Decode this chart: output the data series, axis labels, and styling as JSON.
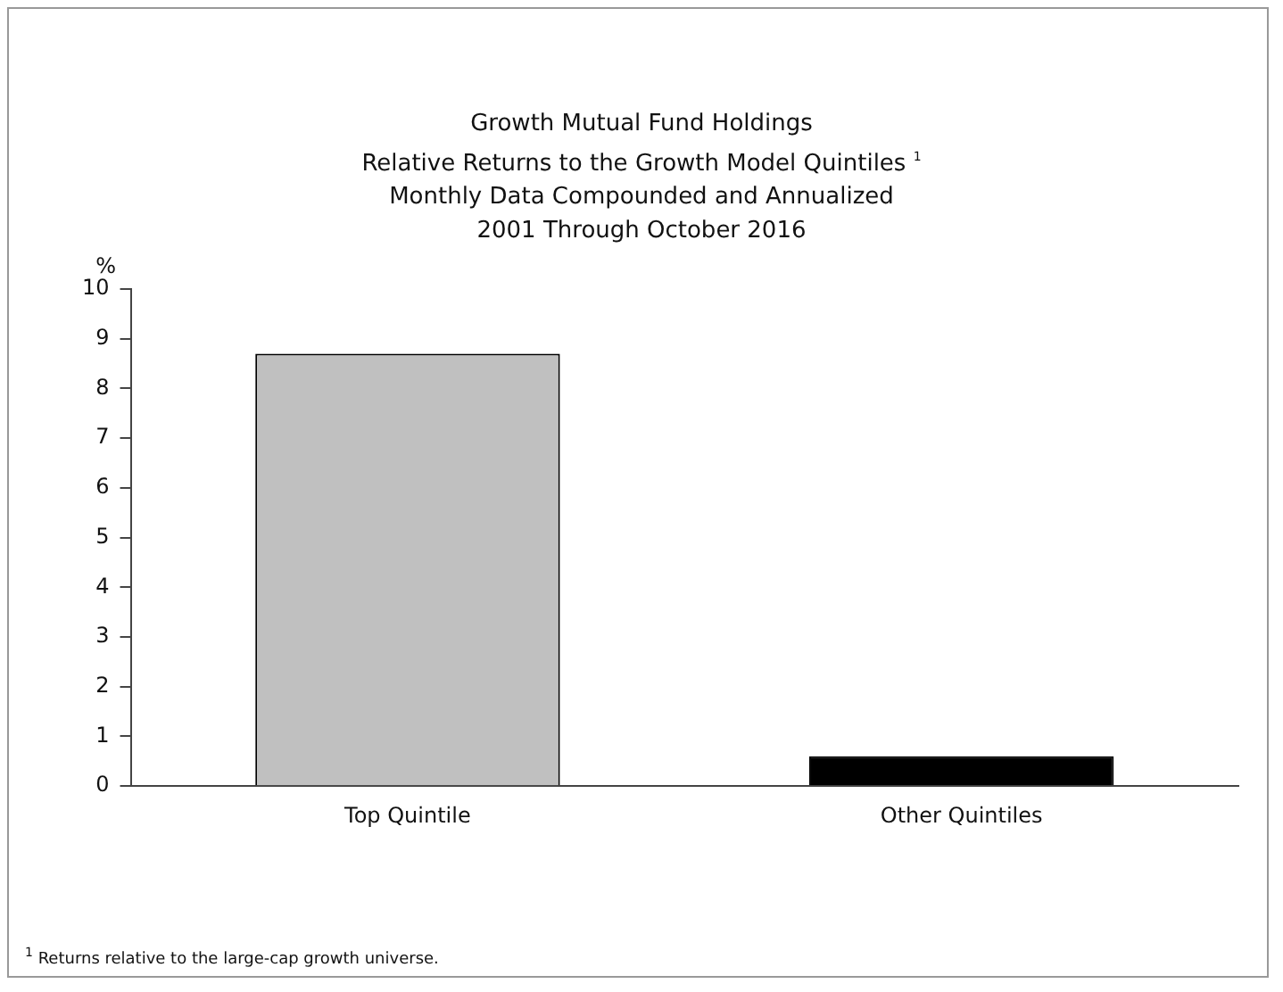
{
  "chart_data": {
    "type": "bar",
    "title": "Growth Mutual Fund Holdings",
    "subtitle": "Relative Returns to the Growth Model Quintiles $^{1}$\nMonthly Data Compounded and Annualized\n2001 Through October 2016",
    "ylabel": "%",
    "categories": [
      "Top Quintile",
      "Other Quintiles"
    ],
    "values": [
      8.7,
      0.6
    ],
    "colors": [
      "#c0c0c0",
      "#000000"
    ],
    "ylim": [
      0,
      10
    ],
    "yticks": [
      0,
      1,
      2,
      3,
      4,
      5,
      6,
      7,
      8,
      9,
      10
    ],
    "grid": false,
    "legend": false,
    "annotations": [
      "$^{1}$ Returns relative to the large-cap growth universe."
    ]
  }
}
